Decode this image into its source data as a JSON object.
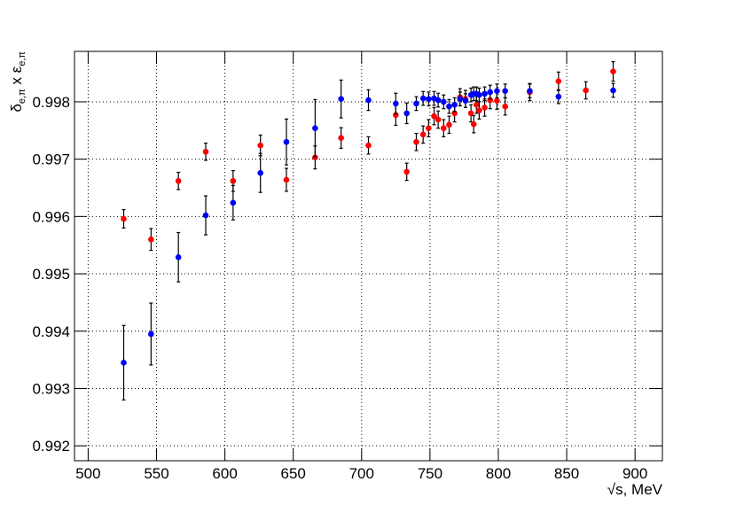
{
  "chart_data": {
    "type": "scatter",
    "x_label": "√s, MeV",
    "y_label": [
      "δ",
      "e,π",
      " x ε",
      "e,π"
    ],
    "xlim": [
      490,
      920
    ],
    "ylim": [
      0.99174,
      0.99888
    ],
    "xticks": [
      500,
      550,
      600,
      650,
      700,
      750,
      800,
      850,
      900
    ],
    "yticks": [
      0.992,
      0.993,
      0.994,
      0.995,
      0.996,
      0.997,
      0.998
    ],
    "grid": true,
    "series": [
      {
        "color": "#ff0000",
        "x": [
          526,
          546,
          566,
          586,
          606,
          626,
          645,
          666,
          685,
          705,
          725,
          733,
          740,
          745,
          749,
          753,
          756,
          760,
          764,
          768,
          772,
          776,
          780,
          782,
          784,
          786,
          790,
          794,
          799,
          805,
          823,
          844,
          864,
          884
        ],
        "values": [
          0.99596,
          0.9956,
          0.99662,
          0.99713,
          0.99662,
          0.99724,
          0.99664,
          0.99703,
          0.99737,
          0.99724,
          0.99777,
          0.99678,
          0.9973,
          0.99743,
          0.99754,
          0.99775,
          0.99769,
          0.99754,
          0.9976,
          0.9978,
          0.99808,
          0.99805,
          0.9978,
          0.99761,
          0.99795,
          0.99785,
          0.9979,
          0.99803,
          0.99802,
          0.99792,
          0.99817,
          0.99836,
          0.9982,
          0.99853
        ],
        "errors": [
          0.00016,
          0.00019,
          0.00015,
          0.00015,
          0.00018,
          0.00018,
          0.0002,
          0.0002,
          0.00018,
          0.00015,
          0.00018,
          0.00015,
          0.00015,
          0.00015,
          0.00015,
          0.00015,
          0.00015,
          0.00015,
          0.00015,
          0.00015,
          0.00015,
          0.00015,
          0.00015,
          0.00015,
          0.00015,
          0.00015,
          0.00015,
          0.00015,
          0.00015,
          0.00015,
          0.00015,
          0.00016,
          0.00015,
          0.00017
        ]
      },
      {
        "color": "#0000ff",
        "x": [
          526,
          546,
          566,
          586,
          606,
          626,
          645,
          666,
          685,
          705,
          725,
          733,
          740,
          745,
          749,
          753,
          756,
          760,
          764,
          768,
          772,
          776,
          780,
          782,
          784,
          786,
          790,
          794,
          799,
          805,
          823,
          844,
          884
        ],
        "values": [
          0.99345,
          0.99395,
          0.99529,
          0.99602,
          0.99624,
          0.99676,
          0.9973,
          0.99754,
          0.99805,
          0.99803,
          0.99797,
          0.9978,
          0.99797,
          0.99806,
          0.99805,
          0.99806,
          0.99803,
          0.998,
          0.99792,
          0.99795,
          0.99805,
          0.99802,
          0.99812,
          0.99814,
          0.99814,
          0.99812,
          0.99814,
          0.99817,
          0.99819,
          0.99819,
          0.99819,
          0.99809,
          0.9982
        ],
        "errors": [
          0.00065,
          0.00054,
          0.00043,
          0.00034,
          0.0003,
          0.00034,
          0.0004,
          0.0005,
          0.00033,
          0.00018,
          0.00018,
          0.00018,
          0.00012,
          0.00012,
          0.00012,
          0.00012,
          0.00012,
          0.00012,
          0.00012,
          0.00012,
          0.00012,
          0.00012,
          0.00012,
          0.00012,
          0.00012,
          0.00012,
          0.00012,
          0.00012,
          0.00012,
          0.00012,
          0.00012,
          0.00012,
          0.00012
        ]
      }
    ]
  }
}
